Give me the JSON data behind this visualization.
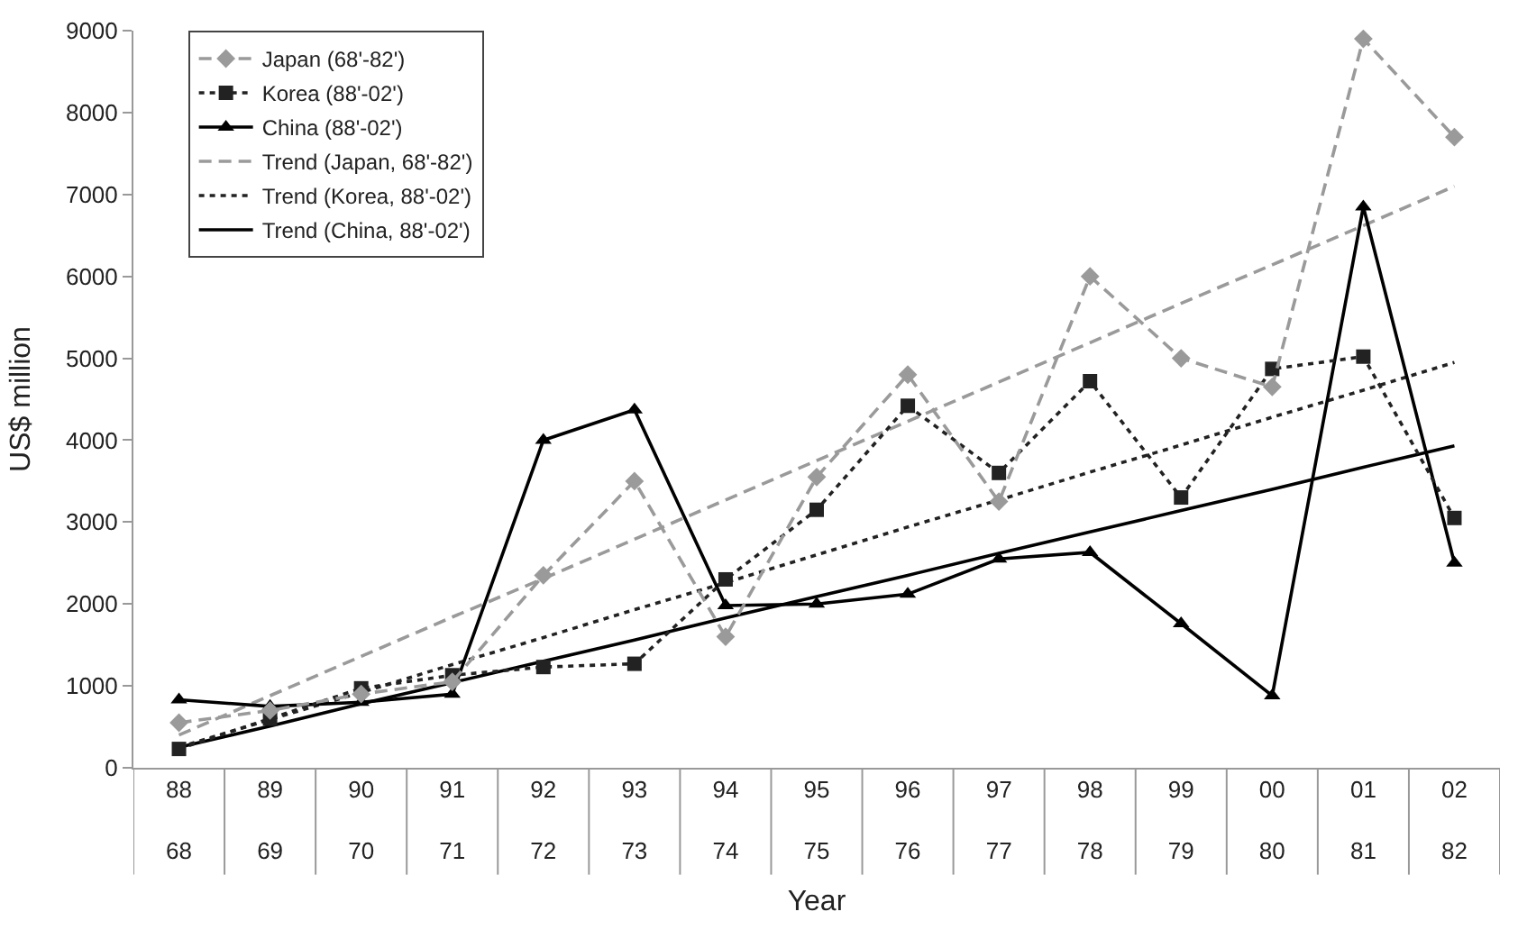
{
  "chart_data": {
    "type": "line",
    "xlabel": "Year",
    "ylabel": "US$ million",
    "categories": [
      "88\n68",
      "89\n69",
      "90\n70",
      "91\n71",
      "92\n72",
      "93\n73",
      "94\n74",
      "95\n75",
      "96\n76",
      "97\n77",
      "98\n78",
      "99\n79",
      "00\n80",
      "01\n81",
      "02\n82"
    ],
    "ylim": [
      0,
      9000
    ],
    "yticks": [
      0,
      1000,
      2000,
      3000,
      4000,
      5000,
      6000,
      7000,
      8000,
      9000
    ],
    "grid": false,
    "legend": "top left",
    "series": [
      {
        "name": "Japan (68'-82')",
        "color": "#9a9a9a",
        "marker": "diamond",
        "line_style": "dashed",
        "values": [
          550,
          700,
          900,
          1050,
          2350,
          3500,
          1600,
          3550,
          4800,
          3250,
          6000,
          5000,
          4650,
          8900,
          7700
        ]
      },
      {
        "name": "Korea (88'-02')",
        "color": "#222222",
        "marker": "square",
        "line_style": "dotted",
        "values": [
          230,
          600,
          970,
          1130,
          1230,
          1270,
          2300,
          3150,
          4420,
          3600,
          4720,
          3300,
          4870,
          5020,
          3050
        ]
      },
      {
        "name": "China (88'-02')",
        "color": "#000000",
        "marker": "triangle",
        "line_style": "solid",
        "values": [
          830,
          750,
          800,
          900,
          4000,
          4370,
          1980,
          2000,
          2120,
          2550,
          2630,
          1760,
          880,
          6850,
          2500
        ]
      },
      {
        "name": "Trend (Japan, 68'-82')",
        "color": "#9a9a9a",
        "marker": "none",
        "line_style": "dashed",
        "values": [
          400,
          880,
          1360,
          1840,
          2310,
          2790,
          3270,
          3750,
          4230,
          4710,
          5190,
          5670,
          6140,
          6620,
          7100
        ]
      },
      {
        "name": "Trend (Korea, 88'-02')",
        "color": "#222222",
        "marker": "none",
        "line_style": "dotted",
        "values": [
          250,
          590,
          920,
          1260,
          1590,
          1930,
          2260,
          2600,
          2940,
          3270,
          3610,
          3940,
          4280,
          4610,
          4950
        ]
      },
      {
        "name": "Trend (China, 88'-02')",
        "color": "#000000",
        "marker": "none",
        "line_style": "solid",
        "values": [
          250,
          510,
          780,
          1040,
          1300,
          1560,
          1830,
          2090,
          2350,
          2620,
          2880,
          3140,
          3400,
          3670,
          3930
        ]
      }
    ]
  }
}
